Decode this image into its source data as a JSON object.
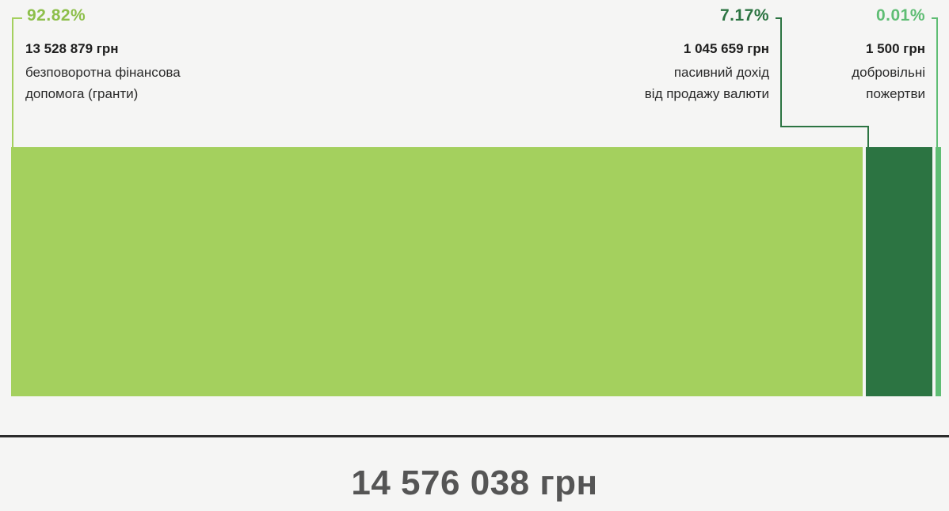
{
  "chart_data": {
    "type": "bar",
    "orientation": "horizontal-stacked-100",
    "segments": [
      {
        "percent_label": "92.82%",
        "value": 13528879,
        "amount_label": "13 528 879 грн",
        "description": "безповоротна фінансова допомога (гранти)",
        "desc_lines": [
          "безповоротна фінансова",
          "допомога (гранти)"
        ],
        "color": "#a4d05e"
      },
      {
        "percent_label": "7.17%",
        "value": 1045659,
        "amount_label": "1 045 659 грн",
        "description": "пасивний дохід від продажу валюти",
        "desc_lines": [
          "пасивний дохід",
          "від продажу валюти"
        ],
        "color": "#2c7442"
      },
      {
        "percent_label": "0.01%",
        "value": 1500,
        "amount_label": "1 500 грн",
        "description": "добровільні пожертви",
        "desc_lines": [
          "добровільні",
          "пожертви"
        ],
        "color": "#5fbd74"
      }
    ],
    "total_label": "14 576 038 грн"
  },
  "colors": {
    "background": "#f5f5f4",
    "divider": "#2b2b2b",
    "total_text": "#555555"
  }
}
